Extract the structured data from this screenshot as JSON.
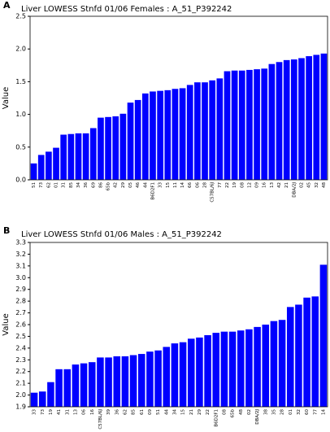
{
  "chart_data": [
    {
      "type": "bar",
      "panel": "A",
      "title": "Liver  LOWESS Stnfd 01/06 Females : A_51_P392242",
      "y_label": "Value",
      "color": "#0000ff",
      "categories": [
        "51",
        "73",
        "62",
        "01",
        "31",
        "85",
        "34",
        "36",
        "69",
        "86",
        "65b",
        "42",
        "29",
        "05",
        "46",
        "44",
        "B6D2F1",
        "33",
        "15",
        "11",
        "14",
        "66",
        "06",
        "28",
        "C57BL/6J",
        "77",
        "22",
        "19",
        "08",
        "12",
        "09",
        "16",
        "13",
        "42",
        "21",
        "DBA/2J",
        "02",
        "45",
        "32",
        "48"
      ],
      "values": [
        0.25,
        0.38,
        0.43,
        0.49,
        0.69,
        0.7,
        0.71,
        0.71,
        0.79,
        0.95,
        0.96,
        0.97,
        1.01,
        1.18,
        1.22,
        1.32,
        1.35,
        1.36,
        1.37,
        1.39,
        1.4,
        1.45,
        1.49,
        1.49,
        1.52,
        1.55,
        1.66,
        1.67,
        1.67,
        1.68,
        1.69,
        1.7,
        1.77,
        1.8,
        1.83,
        1.84,
        1.86,
        1.89,
        1.91,
        1.93
      ],
      "ylim": [
        0,
        2.5
      ],
      "yticks": [
        {
          "value": 0,
          "label": "0.0"
        },
        0.5,
        {
          "value": 1,
          "label": "1.0"
        },
        1.5,
        {
          "value": 2,
          "label": "2.0"
        },
        2.5
      ]
    },
    {
      "type": "bar",
      "panel": "B",
      "title": "Liver  LOWESS Stnfd 01/06 Males : A_51_P392242",
      "y_label": "Value",
      "color": "#0000ff",
      "categories": [
        "33",
        "73",
        "19",
        "41",
        "31",
        "13",
        "06",
        "16",
        "C57BL/6J",
        "39",
        "36",
        "62",
        "85",
        "61",
        "09",
        "51",
        "44",
        "34",
        "15",
        "21",
        "29",
        "22",
        "B6D2F1",
        "08",
        "65b",
        "48",
        "02",
        "DBA/2J",
        "38",
        "35",
        "28",
        "01",
        "32",
        "60",
        "77",
        "14"
      ],
      "values": [
        2.02,
        2.03,
        2.11,
        2.22,
        2.22,
        2.26,
        2.27,
        2.28,
        2.32,
        2.32,
        2.33,
        2.33,
        2.34,
        2.35,
        2.37,
        2.38,
        2.41,
        2.44,
        2.45,
        2.48,
        2.49,
        2.51,
        2.53,
        2.54,
        2.54,
        2.55,
        2.56,
        2.58,
        2.6,
        2.63,
        2.64,
        2.75,
        2.77,
        2.83,
        2.84,
        3.11
      ],
      "ylim": [
        1.9,
        3.3
      ],
      "yticks": [
        1.9,
        {
          "value": 2,
          "label": "2.0"
        },
        2.1,
        2.2,
        2.3,
        2.4,
        2.5,
        2.6,
        2.7,
        2.8,
        2.9,
        {
          "value": 3,
          "label": "3.0"
        },
        3.1,
        3.2,
        3.3
      ]
    }
  ]
}
